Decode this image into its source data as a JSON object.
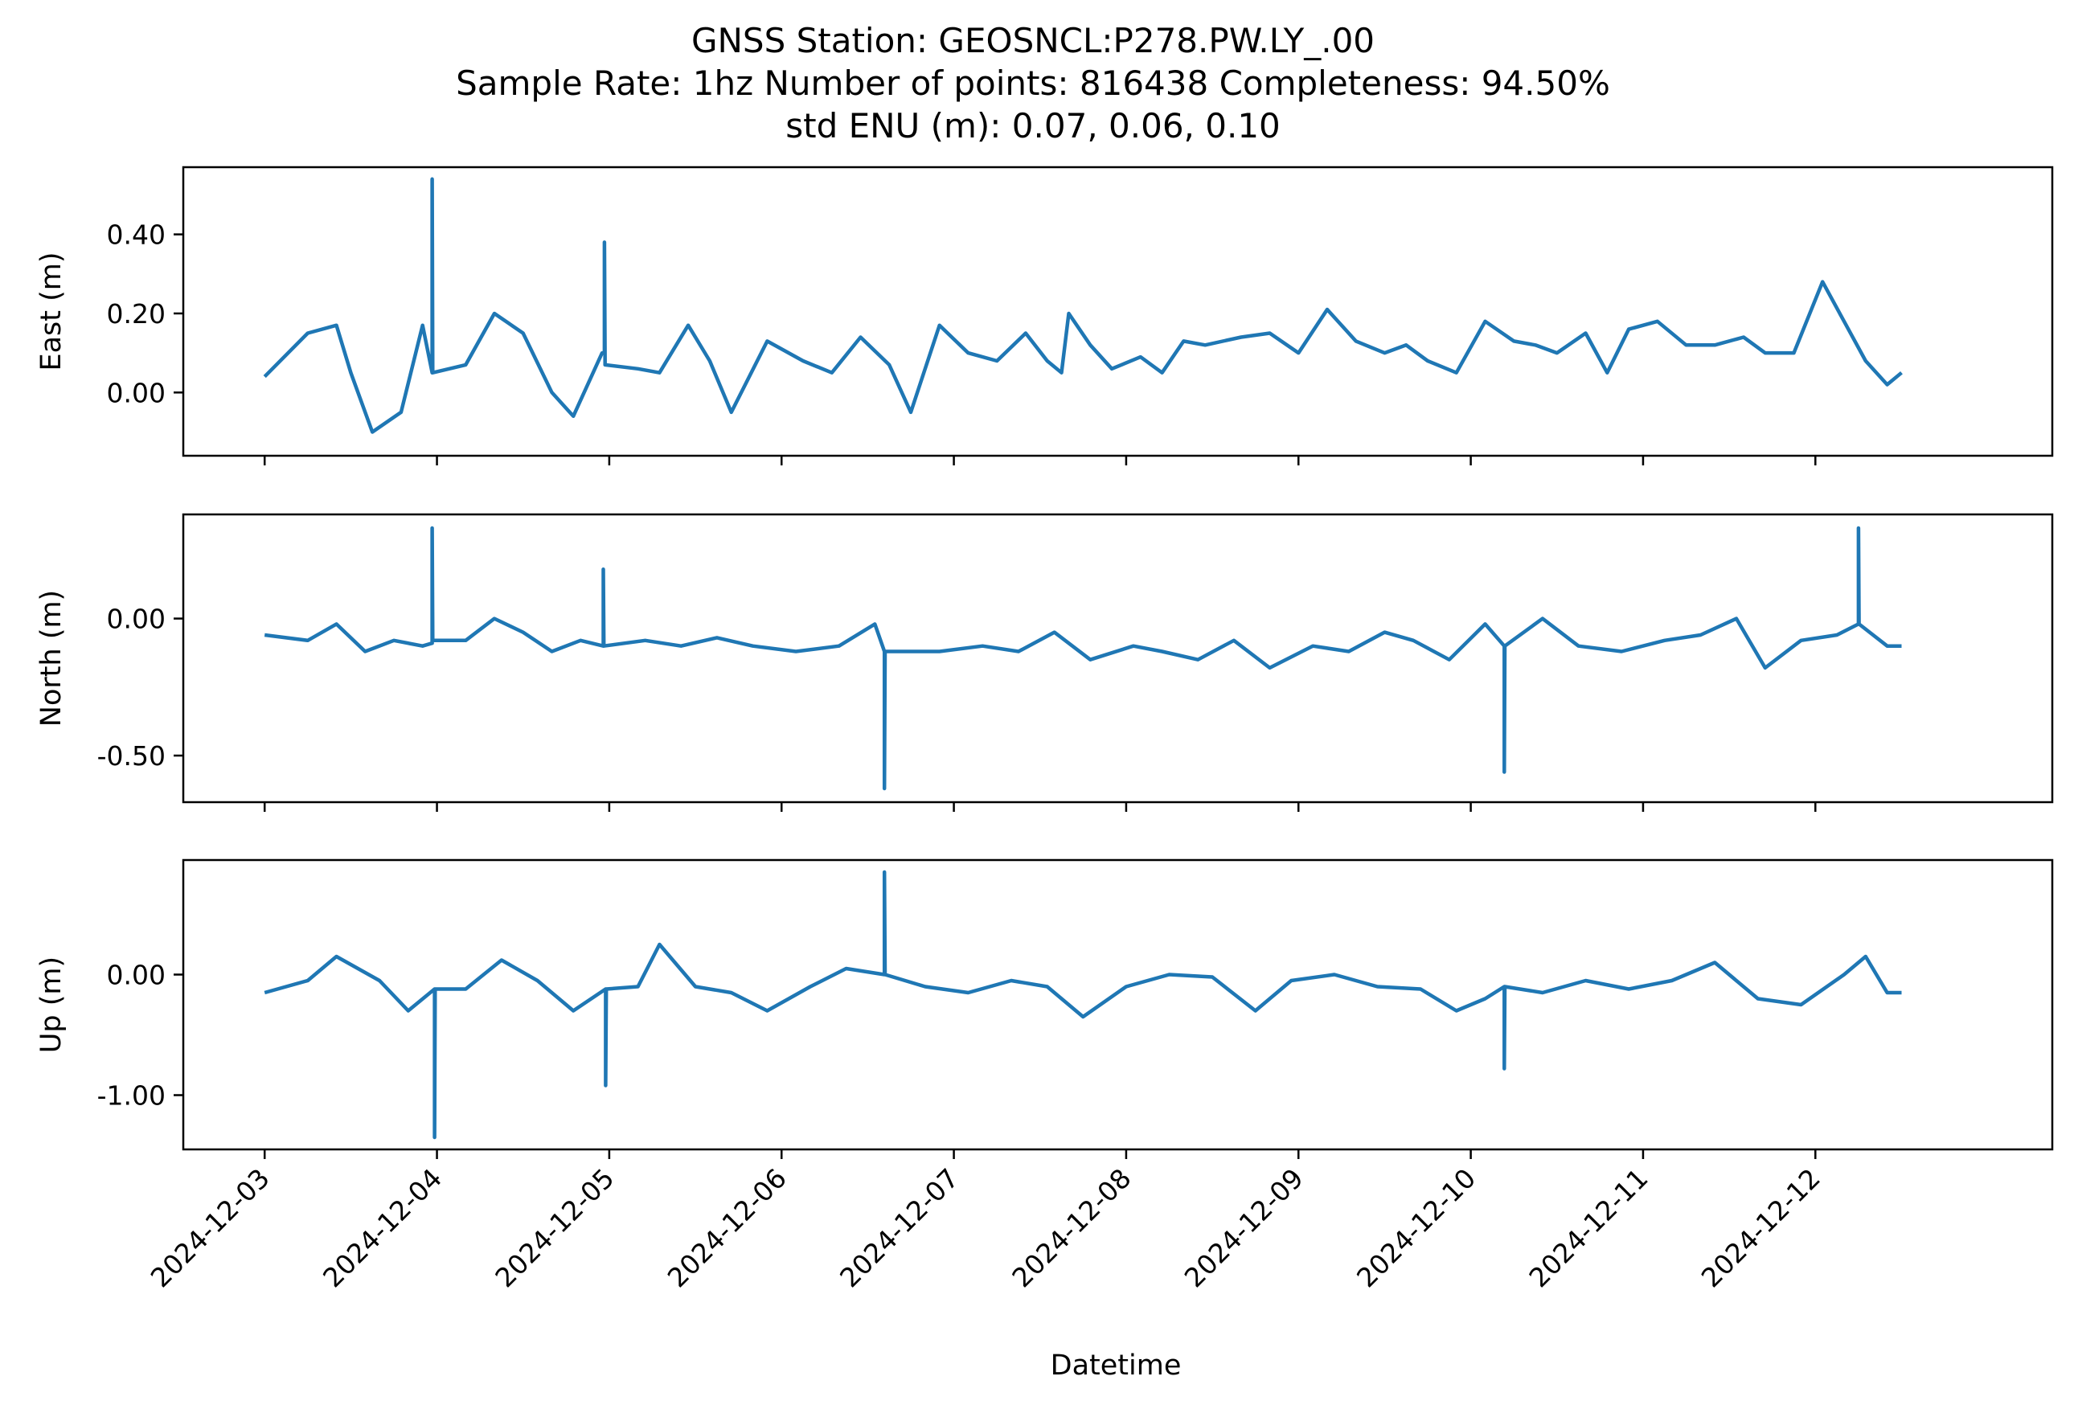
{
  "figure": {
    "title_lines": [
      "GNSS Station: GEOSNCL:P278.PW.LY_.00",
      "Sample Rate: 1hz   Number of points: 816438    Completeness:  94.50%",
      "std ENU (m):  0.07, 0.06, 0.10"
    ],
    "xlabel": "Datetime"
  },
  "chart_data": [
    {
      "type": "line",
      "ylabel": "East (m)",
      "xlim": [
        "2024-12-02 12:40",
        "2024-12-13 09:00"
      ],
      "ylim": [
        -0.16,
        0.57
      ],
      "yticks": [
        0.0,
        0.2,
        0.4
      ],
      "ytick_labels": [
        "0.00",
        "0.20",
        "0.40"
      ],
      "grid": false,
      "series": [
        {
          "color": "#1f77b4",
          "x": [
            "2024-12-03 00:00",
            "2024-12-03 06:00",
            "2024-12-03 10:00",
            "2024-12-03 12:00",
            "2024-12-03 15:00",
            "2024-12-03 19:00",
            "2024-12-03 22:00",
            "2024-12-03 23:20",
            "2024-12-03 23:20",
            "2024-12-03 23:25",
            "2024-12-04 04:00",
            "2024-12-04 08:00",
            "2024-12-04 12:00",
            "2024-12-04 16:00",
            "2024-12-04 19:00",
            "2024-12-04 23:00",
            "2024-12-04 23:20",
            "2024-12-04 23:20",
            "2024-12-04 23:25",
            "2024-12-05 04:00",
            "2024-12-05 07:00",
            "2024-12-05 11:00",
            "2024-12-05 14:00",
            "2024-12-05 17:00",
            "2024-12-05 22:00",
            "2024-12-06 03:00",
            "2024-12-06 07:00",
            "2024-12-06 11:00",
            "2024-12-06 15:00",
            "2024-12-06 18:00",
            "2024-12-06 22:00",
            "2024-12-07 02:00",
            "2024-12-07 06:00",
            "2024-12-07 10:00",
            "2024-12-07 13:00",
            "2024-12-07 15:00",
            "2024-12-07 16:00",
            "2024-12-07 19:00",
            "2024-12-07 22:00",
            "2024-12-08 02:00",
            "2024-12-08 05:00",
            "2024-12-08 08:00",
            "2024-12-08 11:00",
            "2024-12-08 16:00",
            "2024-12-08 20:00",
            "2024-12-09 00:00",
            "2024-12-09 04:00",
            "2024-12-09 08:00",
            "2024-12-09 12:00",
            "2024-12-09 15:00",
            "2024-12-09 18:00",
            "2024-12-09 22:00",
            "2024-12-10 02:00",
            "2024-12-10 06:00",
            "2024-12-10 09:00",
            "2024-12-10 12:00",
            "2024-12-10 16:00",
            "2024-12-10 19:00",
            "2024-12-10 22:00",
            "2024-12-11 02:00",
            "2024-12-11 06:00",
            "2024-12-11 10:00",
            "2024-12-11 14:00",
            "2024-12-11 17:00",
            "2024-12-11 21:00",
            "2024-12-12 01:00",
            "2024-12-12 04:00",
            "2024-12-12 07:00",
            "2024-12-12 10:00",
            "2024-12-12 12:00"
          ],
          "y": [
            0.04,
            0.15,
            0.17,
            0.05,
            -0.1,
            -0.05,
            0.17,
            0.05,
            0.54,
            0.05,
            0.07,
            0.2,
            0.15,
            0.0,
            -0.06,
            0.1,
            0.1,
            0.38,
            0.07,
            0.06,
            0.05,
            0.17,
            0.08,
            -0.05,
            0.13,
            0.08,
            0.05,
            0.14,
            0.07,
            -0.05,
            0.17,
            0.1,
            0.08,
            0.15,
            0.08,
            0.05,
            0.2,
            0.12,
            0.06,
            0.09,
            0.05,
            0.13,
            0.12,
            0.14,
            0.15,
            0.1,
            0.21,
            0.13,
            0.1,
            0.12,
            0.08,
            0.05,
            0.18,
            0.13,
            0.12,
            0.1,
            0.15,
            0.05,
            0.16,
            0.18,
            0.12,
            0.12,
            0.14,
            0.1,
            0.1,
            0.28,
            0.18,
            0.08,
            0.02,
            0.05
          ]
        }
      ]
    },
    {
      "type": "line",
      "ylabel": "North (m)",
      "xlim": [
        "2024-12-02 12:40",
        "2024-12-13 09:00"
      ],
      "ylim": [
        -0.67,
        0.38
      ],
      "yticks": [
        -0.5,
        0.0
      ],
      "ytick_labels": [
        "-0.50",
        "0.00"
      ],
      "grid": false,
      "series": [
        {
          "color": "#1f77b4",
          "x": [
            "2024-12-03 00:00",
            "2024-12-03 06:00",
            "2024-12-03 10:00",
            "2024-12-03 14:00",
            "2024-12-03 18:00",
            "2024-12-03 22:00",
            "2024-12-03 23:20",
            "2024-12-03 23:20",
            "2024-12-03 23:25",
            "2024-12-04 04:00",
            "2024-12-04 08:00",
            "2024-12-04 12:00",
            "2024-12-04 16:00",
            "2024-12-04 20:00",
            "2024-12-04 23:10",
            "2024-12-04 23:10",
            "2024-12-04 23:15",
            "2024-12-05 05:00",
            "2024-12-05 10:00",
            "2024-12-05 15:00",
            "2024-12-05 20:00",
            "2024-12-06 02:00",
            "2024-12-06 08:00",
            "2024-12-06 13:00",
            "2024-12-06 14:20",
            "2024-12-06 14:20",
            "2024-12-06 14:25",
            "2024-12-06 18:00",
            "2024-12-06 22:00",
            "2024-12-07 04:00",
            "2024-12-07 09:00",
            "2024-12-07 14:00",
            "2024-12-07 19:00",
            "2024-12-08 01:00",
            "2024-12-08 05:00",
            "2024-12-08 10:00",
            "2024-12-08 15:00",
            "2024-12-08 20:00",
            "2024-12-09 02:00",
            "2024-12-09 07:00",
            "2024-12-09 12:00",
            "2024-12-09 16:00",
            "2024-12-09 21:00",
            "2024-12-10 02:00",
            "2024-12-10 04:40",
            "2024-12-10 04:40",
            "2024-12-10 04:45",
            "2024-12-10 10:00",
            "2024-12-10 15:00",
            "2024-12-10 21:00",
            "2024-12-11 03:00",
            "2024-12-11 08:00",
            "2024-12-11 13:00",
            "2024-12-11 17:00",
            "2024-12-11 22:00",
            "2024-12-12 03:00",
            "2024-12-12 06:00",
            "2024-12-12 06:00",
            "2024-12-12 06:05",
            "2024-12-12 10:00",
            "2024-12-12 12:00"
          ],
          "y": [
            -0.06,
            -0.08,
            -0.02,
            -0.12,
            -0.08,
            -0.1,
            -0.09,
            0.33,
            -0.08,
            -0.08,
            0.0,
            -0.05,
            -0.12,
            -0.08,
            -0.1,
            0.18,
            -0.1,
            -0.08,
            -0.1,
            -0.07,
            -0.1,
            -0.12,
            -0.1,
            -0.02,
            -0.12,
            -0.62,
            -0.12,
            -0.12,
            -0.12,
            -0.1,
            -0.12,
            -0.05,
            -0.15,
            -0.1,
            -0.12,
            -0.15,
            -0.08,
            -0.18,
            -0.1,
            -0.12,
            -0.05,
            -0.08,
            -0.15,
            -0.02,
            -0.1,
            -0.56,
            -0.1,
            0.0,
            -0.1,
            -0.12,
            -0.08,
            -0.06,
            0.0,
            -0.18,
            -0.08,
            -0.06,
            -0.02,
            0.33,
            -0.02,
            -0.1,
            -0.1
          ]
        }
      ]
    },
    {
      "type": "line",
      "ylabel": "Up (m)",
      "xlim": [
        "2024-12-02 12:40",
        "2024-12-13 09:00"
      ],
      "ylim": [
        -1.45,
        0.95
      ],
      "yticks": [
        -1.0,
        0.0
      ],
      "ytick_labels": [
        "-1.00",
        "0.00"
      ],
      "grid": false,
      "series": [
        {
          "color": "#1f77b4",
          "x": [
            "2024-12-03 00:00",
            "2024-12-03 06:00",
            "2024-12-03 10:00",
            "2024-12-03 16:00",
            "2024-12-03 20:00",
            "2024-12-03 23:40",
            "2024-12-03 23:40",
            "2024-12-03 23:45",
            "2024-12-04 04:00",
            "2024-12-04 09:00",
            "2024-12-04 14:00",
            "2024-12-04 19:00",
            "2024-12-04 23:30",
            "2024-12-04 23:30",
            "2024-12-04 23:35",
            "2024-12-05 04:00",
            "2024-12-05 07:00",
            "2024-12-05 12:00",
            "2024-12-05 17:00",
            "2024-12-05 22:00",
            "2024-12-06 04:00",
            "2024-12-06 09:00",
            "2024-12-06 14:20",
            "2024-12-06 14:20",
            "2024-12-06 14:25",
            "2024-12-06 20:00",
            "2024-12-07 02:00",
            "2024-12-07 08:00",
            "2024-12-07 13:00",
            "2024-12-07 18:00",
            "2024-12-08 00:00",
            "2024-12-08 06:00",
            "2024-12-08 12:00",
            "2024-12-08 18:00",
            "2024-12-08 23:00",
            "2024-12-09 05:00",
            "2024-12-09 11:00",
            "2024-12-09 17:00",
            "2024-12-09 22:00",
            "2024-12-10 02:00",
            "2024-12-10 04:40",
            "2024-12-10 04:40",
            "2024-12-10 04:45",
            "2024-12-10 10:00",
            "2024-12-10 16:00",
            "2024-12-10 22:00",
            "2024-12-11 04:00",
            "2024-12-11 10:00",
            "2024-12-11 16:00",
            "2024-12-11 22:00",
            "2024-12-12 04:00",
            "2024-12-12 07:00",
            "2024-12-12 10:00",
            "2024-12-12 12:00"
          ],
          "y": [
            -0.15,
            -0.05,
            0.15,
            -0.05,
            -0.3,
            -0.12,
            -1.35,
            -0.12,
            -0.12,
            0.12,
            -0.05,
            -0.3,
            -0.12,
            -0.92,
            -0.12,
            -0.1,
            0.25,
            -0.1,
            -0.15,
            -0.3,
            -0.1,
            0.05,
            0.0,
            0.85,
            0.0,
            -0.1,
            -0.15,
            -0.05,
            -0.1,
            -0.35,
            -0.1,
            0.0,
            -0.02,
            -0.3,
            -0.05,
            0.0,
            -0.1,
            -0.12,
            -0.3,
            -0.2,
            -0.1,
            -0.78,
            -0.1,
            -0.15,
            -0.05,
            -0.12,
            -0.05,
            0.1,
            -0.2,
            -0.25,
            0.0,
            0.15,
            -0.15,
            -0.15
          ]
        }
      ]
    }
  ],
  "xticks": [
    "2024-12-03",
    "2024-12-04",
    "2024-12-05",
    "2024-12-06",
    "2024-12-07",
    "2024-12-08",
    "2024-12-09",
    "2024-12-10",
    "2024-12-11",
    "2024-12-12"
  ]
}
